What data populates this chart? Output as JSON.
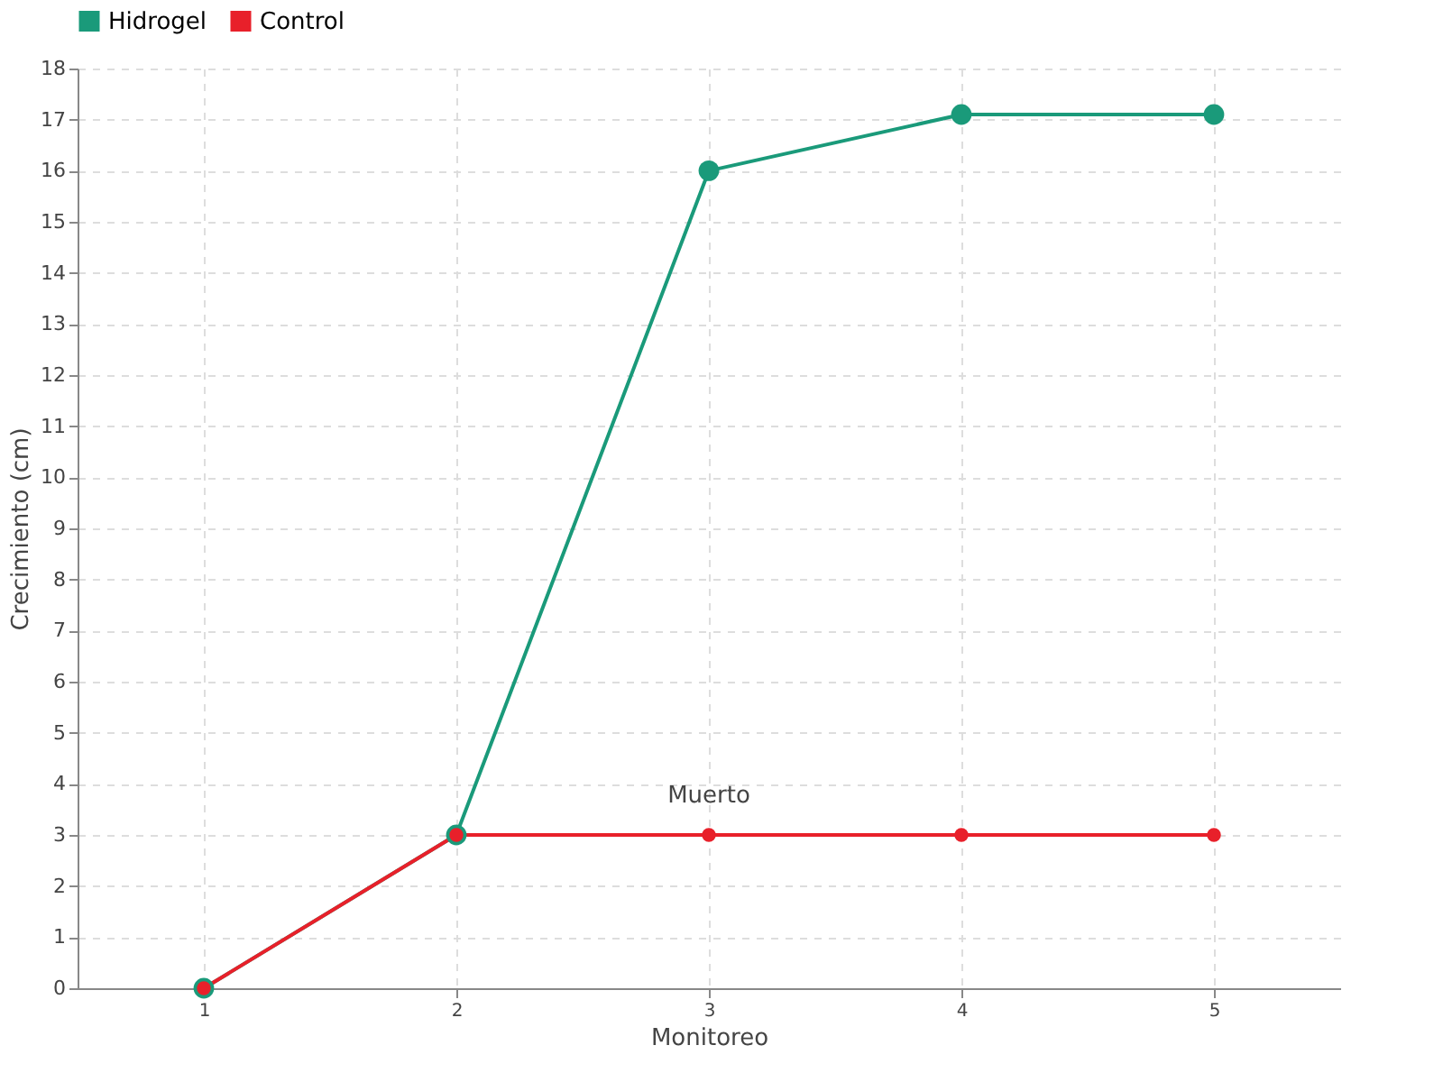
{
  "chart_data": {
    "type": "line",
    "xlabel": "Monitoreo",
    "ylabel": "Crecimiento (cm)",
    "categories": [
      "1",
      "2",
      "3",
      "4",
      "5"
    ],
    "series": [
      {
        "name": "Hidrogel",
        "color": "#1a9a7a",
        "values": [
          0,
          3,
          16,
          17.1,
          17.1
        ]
      },
      {
        "name": "Control",
        "color": "#e8202a",
        "values": [
          0,
          3,
          3,
          3,
          3
        ]
      }
    ],
    "ylim": [
      0,
      18
    ],
    "yticks": [
      0,
      1,
      2,
      3,
      4,
      5,
      6,
      7,
      8,
      9,
      10,
      11,
      12,
      13,
      14,
      15,
      16,
      17,
      18
    ],
    "annotations": [
      {
        "text": "Muerto",
        "x": "3",
        "y": 3
      }
    ],
    "grid": true,
    "legend": "top left",
    "marker": "circle",
    "line_style": "solid"
  }
}
